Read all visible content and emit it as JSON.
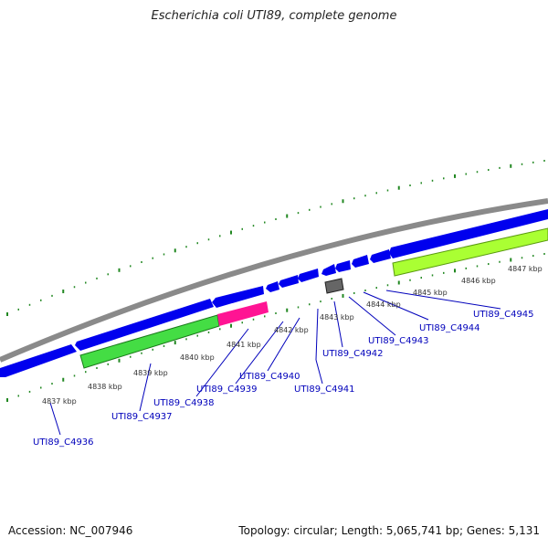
{
  "title": "Escherichia coli UTI89, complete genome",
  "footer": {
    "accession": "Accession: NC_007946",
    "summary": "Topology: circular; Length: 5,065,741 bp; Genes: 5,131"
  },
  "colors": {
    "backbone": "#8a8a8a",
    "gene_blue": "#0000ee",
    "gene_green": "#44dd44",
    "gene_lime": "#aaff33",
    "gene_pink": "#ff1493",
    "gene_gray": "#666666",
    "tick": "#228822",
    "label": "#0000bb"
  },
  "kbp_labels": [
    "4837 kbp",
    "4838 kbp",
    "4839 kbp",
    "4840 kbp",
    "4841 kbp",
    "4842 kbp",
    "4843 kbp",
    "4844 kbp",
    "4845 kbp",
    "4846 kbp",
    "4847 kbp"
  ],
  "gene_labels": [
    "UTI89_C4936",
    "UTI89_C4937",
    "UTI89_C4938",
    "UTI89_C4939",
    "UTI89_C4940",
    "UTI89_C4941",
    "UTI89_C4942",
    "UTI89_C4943",
    "UTI89_C4944",
    "UTI89_C4945"
  ]
}
